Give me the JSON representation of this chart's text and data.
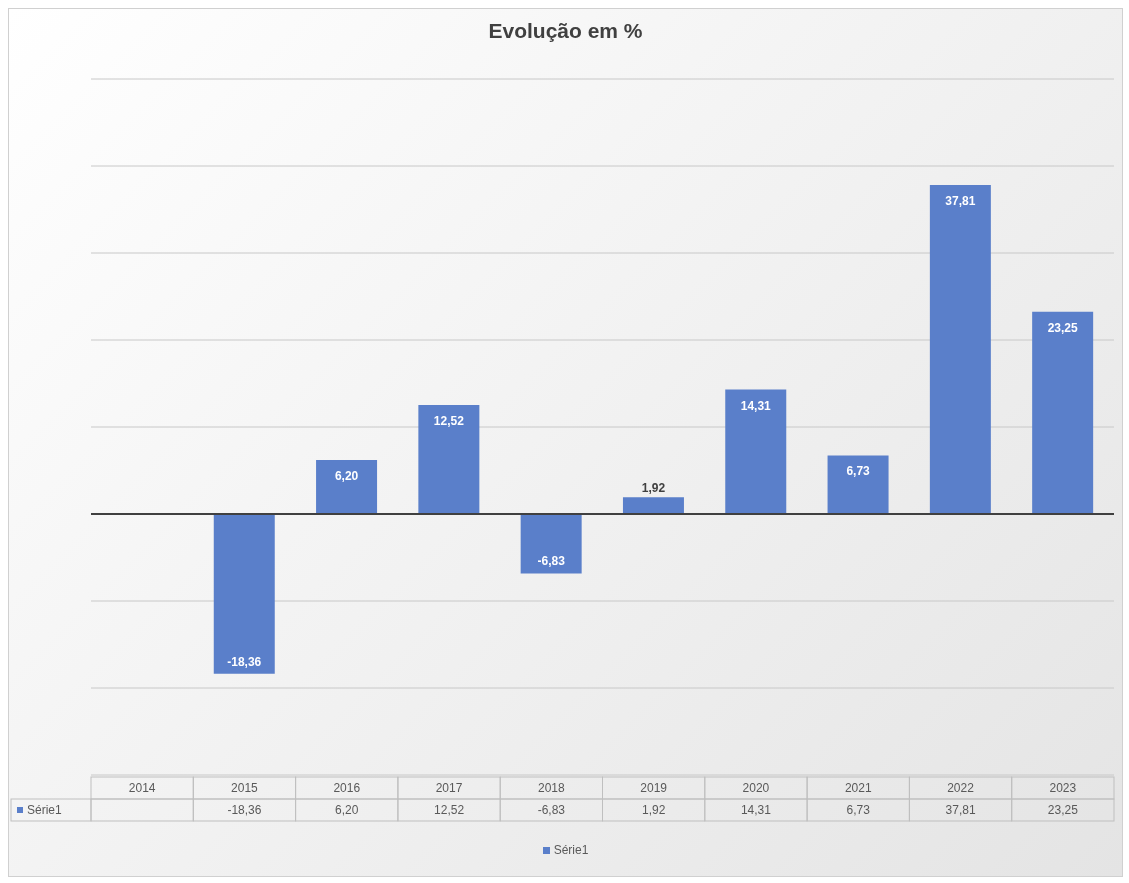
{
  "chart_data": {
    "type": "bar",
    "title": "Evolução em %",
    "categories": [
      "2014",
      "2015",
      "2016",
      "2017",
      "2018",
      "2019",
      "2020",
      "2021",
      "2022",
      "2023"
    ],
    "series": [
      {
        "name": "Série1",
        "color": "#5a7fca",
        "values": [
          null,
          -18.36,
          6.2,
          12.52,
          -6.83,
          1.92,
          14.31,
          6.73,
          37.81,
          23.25
        ],
        "value_labels": [
          null,
          "-18,36",
          "6,20",
          "12,52",
          "-6,83",
          "1,92",
          "14,31",
          "6,73",
          "37,81",
          "23,25"
        ]
      }
    ],
    "ylim": [
      -30,
      50
    ],
    "yticks": [
      {
        "value": -30,
        "label": null
      },
      {
        "value": -20,
        "label": null
      },
      {
        "value": -10,
        "label": null
      },
      {
        "value": 0,
        "label": null
      },
      {
        "value": 10,
        "label": null
      },
      {
        "value": 20,
        "label": null
      },
      {
        "value": 30,
        "label": null
      },
      {
        "value": 40,
        "label": null
      },
      {
        "value": 50,
        "label": null
      }
    ],
    "tick_labels": "x",
    "grid": "y",
    "legend": "bottom",
    "ref_lines": [
      {
        "axis": "y",
        "value": 0,
        "color": "#404040"
      }
    ]
  }
}
